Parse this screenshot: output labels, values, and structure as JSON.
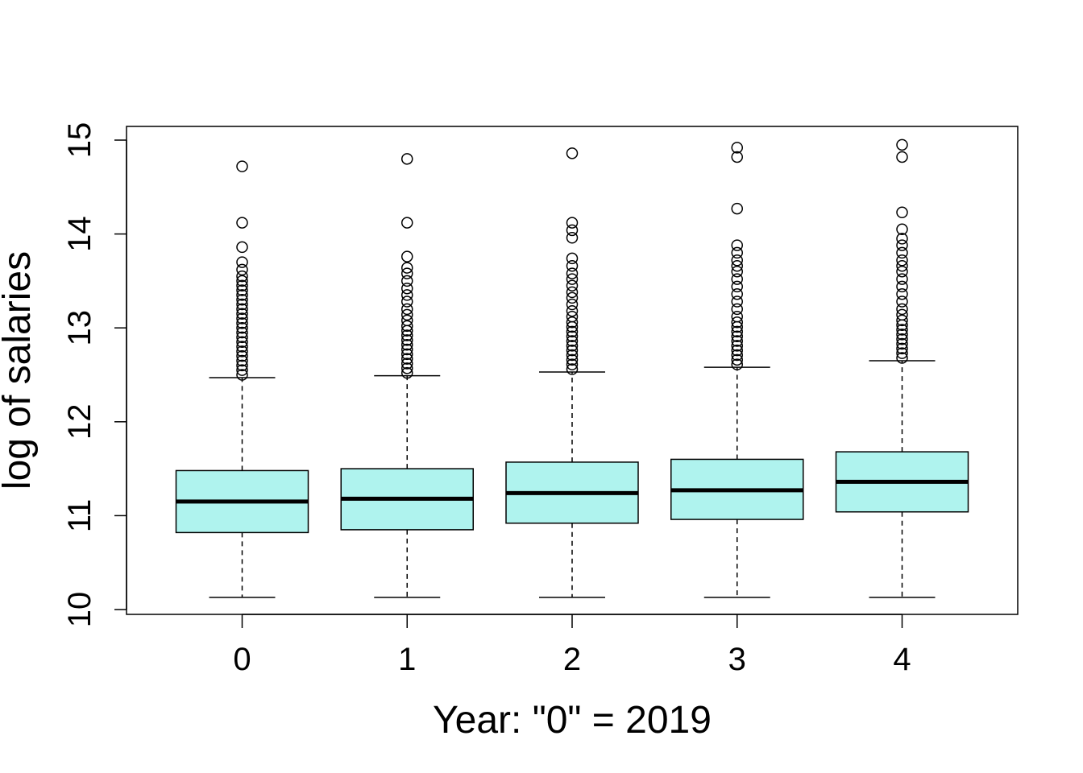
{
  "chart_data": {
    "type": "boxplot",
    "title": "",
    "xlabel": "Year: \"0\" = 2019",
    "ylabel": "log of salaries",
    "ylim": [
      10,
      15.1
    ],
    "y_ticks": [
      10,
      11,
      12,
      13,
      14,
      15
    ],
    "categories": [
      "0",
      "1",
      "2",
      "3",
      "4"
    ],
    "box_color": "#AFF3EE",
    "boxes": [
      {
        "category": "0",
        "whisker_low": 10.13,
        "q1": 10.82,
        "median": 11.15,
        "q3": 11.48,
        "whisker_high": 12.47,
        "outliers": [
          12.5,
          12.55,
          12.6,
          12.65,
          12.7,
          12.75,
          12.8,
          12.85,
          12.9,
          12.95,
          13.0,
          13.05,
          13.1,
          13.15,
          13.2,
          13.25,
          13.3,
          13.35,
          13.4,
          13.45,
          13.5,
          13.55,
          13.62,
          13.7,
          13.86,
          14.12,
          14.72
        ]
      },
      {
        "category": "1",
        "whisker_low": 10.13,
        "q1": 10.85,
        "median": 11.18,
        "q3": 11.5,
        "whisker_high": 12.49,
        "outliers": [
          12.52,
          12.57,
          12.62,
          12.67,
          12.72,
          12.77,
          12.82,
          12.87,
          12.92,
          12.97,
          13.02,
          13.08,
          13.14,
          13.2,
          13.28,
          13.35,
          13.42,
          13.5,
          13.58,
          13.64,
          13.76,
          14.12,
          14.8
        ]
      },
      {
        "category": "2",
        "whisker_low": 10.13,
        "q1": 10.92,
        "median": 11.24,
        "q3": 11.57,
        "whisker_high": 12.53,
        "outliers": [
          12.56,
          12.61,
          12.66,
          12.71,
          12.76,
          12.81,
          12.86,
          12.91,
          12.96,
          13.01,
          13.06,
          13.12,
          13.18,
          13.25,
          13.32,
          13.38,
          13.45,
          13.52,
          13.58,
          13.66,
          13.74,
          13.96,
          14.04,
          14.12,
          14.86
        ]
      },
      {
        "category": "3",
        "whisker_low": 10.13,
        "q1": 10.96,
        "median": 11.27,
        "q3": 11.6,
        "whisker_high": 12.58,
        "outliers": [
          12.61,
          12.66,
          12.71,
          12.76,
          12.81,
          12.86,
          12.91,
          12.96,
          13.01,
          13.06,
          13.12,
          13.2,
          13.28,
          13.36,
          13.44,
          13.52,
          13.6,
          13.66,
          13.72,
          13.8,
          13.88,
          14.27,
          14.82,
          14.92
        ]
      },
      {
        "category": "4",
        "whisker_low": 10.13,
        "q1": 11.04,
        "median": 11.36,
        "q3": 11.68,
        "whisker_high": 12.65,
        "outliers": [
          12.68,
          12.73,
          12.78,
          12.83,
          12.88,
          12.93,
          12.98,
          13.03,
          13.08,
          13.14,
          13.2,
          13.28,
          13.36,
          13.44,
          13.52,
          13.6,
          13.66,
          13.72,
          13.8,
          13.88,
          13.95,
          14.05,
          14.23,
          14.82,
          14.95
        ]
      }
    ]
  }
}
